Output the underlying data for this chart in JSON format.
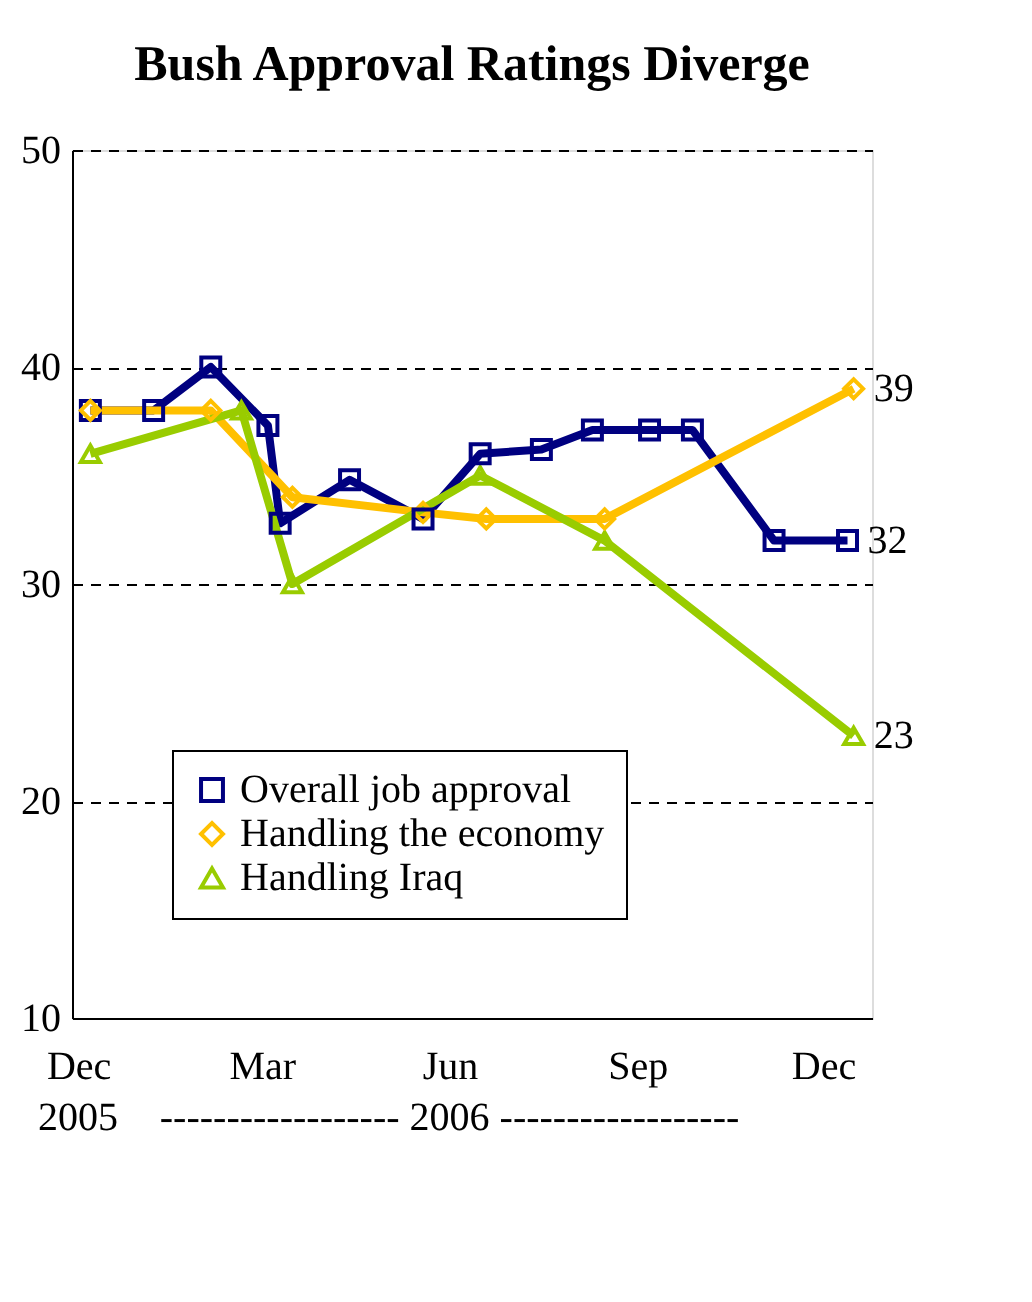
{
  "chart_data": {
    "type": "line",
    "title": "Bush Approval Ratings Diverge",
    "xlim": [
      "2005-11-28",
      "2006-12-25"
    ],
    "xticks": [
      {
        "value": "2005-12-01",
        "label": "Dec"
      },
      {
        "value": "2006-03-01",
        "label": "Mar"
      },
      {
        "value": "2006-06-01",
        "label": "Jun"
      },
      {
        "value": "2006-09-01",
        "label": "Sep"
      },
      {
        "value": "2006-12-01",
        "label": "Dec"
      }
    ],
    "ylim": [
      10,
      50
    ],
    "yticks": [
      10,
      20,
      30,
      40,
      50
    ],
    "grid": "y",
    "line_style": "solid",
    "legend": "bottom left",
    "annotations": [
      "2005",
      "------------------ 2006 ------------------"
    ],
    "series": [
      {
        "name": "Overall job approval",
        "color": "#000080",
        "marker": "square",
        "x": [
          "2005-12-07",
          "2006-01-07",
          "2006-02-04",
          "2006-03-04",
          "2006-03-10",
          "2006-04-13",
          "2006-05-19",
          "2006-06-16",
          "2006-07-16",
          "2006-08-10",
          "2006-09-07",
          "2006-09-28",
          "2006-11-07",
          "2006-12-13"
        ],
        "values": [
          38,
          38,
          40,
          37.3,
          32.8,
          34.8,
          33,
          36,
          36.2,
          37.1,
          37.1,
          37.1,
          32,
          32
        ],
        "value_labels": [
          null,
          null,
          null,
          null,
          null,
          null,
          null,
          null,
          null,
          null,
          null,
          null,
          null,
          "32"
        ]
      },
      {
        "name": "Handling the economy",
        "color": "#ffc000",
        "marker": "diamond",
        "x": [
          "2005-12-07",
          "2006-02-04",
          "2006-03-16",
          "2006-05-19",
          "2006-06-19",
          "2006-08-16",
          "2006-12-16"
        ],
        "values": [
          38,
          38,
          34,
          33.3,
          33,
          33,
          39
        ],
        "value_labels": [
          null,
          null,
          null,
          null,
          null,
          null,
          "39"
        ]
      },
      {
        "name": "Handling Iraq",
        "color": "#99cc00",
        "marker": "triangle",
        "x": [
          "2005-12-07",
          "2006-02-19",
          "2006-03-16",
          "2006-06-16",
          "2006-08-16",
          "2006-12-16"
        ],
        "values": [
          36,
          38,
          30,
          35,
          32,
          23
        ],
        "value_labels": [
          null,
          null,
          null,
          null,
          null,
          "23"
        ]
      }
    ]
  }
}
